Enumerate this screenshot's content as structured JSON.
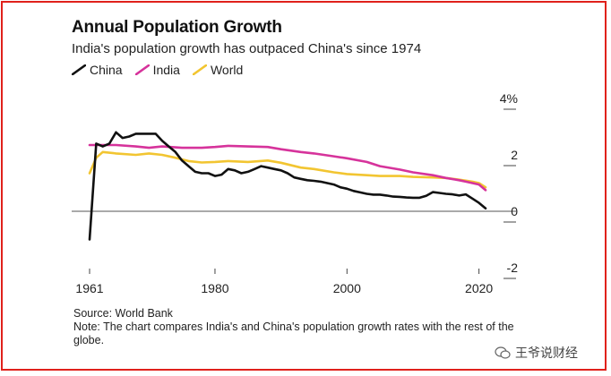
{
  "title": "Annual Population Growth",
  "subtitle": "India's population growth has outpaced China's since 1974",
  "legend": [
    {
      "label": "China",
      "color": "#111111"
    },
    {
      "label": "India",
      "color": "#d6339b"
    },
    {
      "label": "World",
      "color": "#f2c531"
    }
  ],
  "source": "Source: World Bank",
  "note": "Note: The chart compares India's and China's population growth rates with the rest of the globe.",
  "watermark": "王爷说财经",
  "chart_data": {
    "type": "line",
    "title": "Annual Population Growth",
    "xlabel": "",
    "ylabel": "",
    "xlim": [
      1961,
      2021
    ],
    "ylim": [
      -2,
      4
    ],
    "x_ticks": [
      {
        "value": 1961,
        "label": "1961"
      },
      {
        "value": 1980,
        "label": "1980"
      },
      {
        "value": 2000,
        "label": "2000"
      },
      {
        "value": 2020,
        "label": "2020"
      }
    ],
    "y_ticks": [
      {
        "value": 4,
        "label": "4%"
      },
      {
        "value": 2,
        "label": "2"
      },
      {
        "value": 0,
        "label": "0"
      },
      {
        "value": -2,
        "label": "-2"
      }
    ],
    "series": [
      {
        "name": "China",
        "color": "#111111",
        "points": [
          [
            1961,
            -1.0
          ],
          [
            1962,
            2.4
          ],
          [
            1963,
            2.3
          ],
          [
            1964,
            2.4
          ],
          [
            1965,
            2.8
          ],
          [
            1966,
            2.6
          ],
          [
            1967,
            2.65
          ],
          [
            1968,
            2.75
          ],
          [
            1969,
            2.75
          ],
          [
            1970,
            2.75
          ],
          [
            1971,
            2.75
          ],
          [
            1972,
            2.5
          ],
          [
            1973,
            2.3
          ],
          [
            1974,
            2.1
          ],
          [
            1975,
            1.8
          ],
          [
            1976,
            1.6
          ],
          [
            1977,
            1.4
          ],
          [
            1978,
            1.35
          ],
          [
            1979,
            1.35
          ],
          [
            1980,
            1.25
          ],
          [
            1981,
            1.3
          ],
          [
            1982,
            1.5
          ],
          [
            1983,
            1.45
          ],
          [
            1984,
            1.35
          ],
          [
            1985,
            1.4
          ],
          [
            1986,
            1.5
          ],
          [
            1987,
            1.6
          ],
          [
            1988,
            1.55
          ],
          [
            1989,
            1.5
          ],
          [
            1990,
            1.45
          ],
          [
            1991,
            1.35
          ],
          [
            1992,
            1.2
          ],
          [
            1993,
            1.15
          ],
          [
            1994,
            1.1
          ],
          [
            1995,
            1.08
          ],
          [
            1996,
            1.05
          ],
          [
            1997,
            1.0
          ],
          [
            1998,
            0.95
          ],
          [
            1999,
            0.85
          ],
          [
            2000,
            0.8
          ],
          [
            2001,
            0.72
          ],
          [
            2002,
            0.67
          ],
          [
            2003,
            0.62
          ],
          [
            2004,
            0.59
          ],
          [
            2005,
            0.59
          ],
          [
            2006,
            0.56
          ],
          [
            2007,
            0.52
          ],
          [
            2008,
            0.51
          ],
          [
            2009,
            0.49
          ],
          [
            2010,
            0.48
          ],
          [
            2011,
            0.48
          ],
          [
            2012,
            0.55
          ],
          [
            2013,
            0.68
          ],
          [
            2014,
            0.65
          ],
          [
            2015,
            0.62
          ],
          [
            2016,
            0.6
          ],
          [
            2017,
            0.56
          ],
          [
            2018,
            0.6
          ],
          [
            2019,
            0.45
          ],
          [
            2020,
            0.3
          ],
          [
            2021,
            0.1
          ]
        ]
      },
      {
        "name": "India",
        "color": "#d6339b",
        "points": [
          [
            1961,
            2.35
          ],
          [
            1965,
            2.35
          ],
          [
            1968,
            2.3
          ],
          [
            1970,
            2.25
          ],
          [
            1972,
            2.3
          ],
          [
            1975,
            2.25
          ],
          [
            1978,
            2.25
          ],
          [
            1980,
            2.28
          ],
          [
            1982,
            2.32
          ],
          [
            1985,
            2.3
          ],
          [
            1988,
            2.28
          ],
          [
            1990,
            2.2
          ],
          [
            1993,
            2.1
          ],
          [
            1995,
            2.05
          ],
          [
            1998,
            1.95
          ],
          [
            2000,
            1.88
          ],
          [
            2003,
            1.75
          ],
          [
            2005,
            1.6
          ],
          [
            2008,
            1.48
          ],
          [
            2010,
            1.38
          ],
          [
            2013,
            1.28
          ],
          [
            2015,
            1.18
          ],
          [
            2017,
            1.1
          ],
          [
            2018,
            1.05
          ],
          [
            2019,
            1.0
          ],
          [
            2020,
            0.95
          ],
          [
            2021,
            0.75
          ]
        ]
      },
      {
        "name": "World",
        "color": "#f2c531",
        "points": [
          [
            1961,
            1.35
          ],
          [
            1962,
            1.9
          ],
          [
            1963,
            2.1
          ],
          [
            1965,
            2.05
          ],
          [
            1968,
            2.0
          ],
          [
            1970,
            2.05
          ],
          [
            1972,
            2.0
          ],
          [
            1974,
            1.9
          ],
          [
            1976,
            1.78
          ],
          [
            1978,
            1.73
          ],
          [
            1980,
            1.75
          ],
          [
            1982,
            1.78
          ],
          [
            1985,
            1.75
          ],
          [
            1988,
            1.8
          ],
          [
            1990,
            1.72
          ],
          [
            1993,
            1.55
          ],
          [
            1995,
            1.5
          ],
          [
            1998,
            1.38
          ],
          [
            2000,
            1.32
          ],
          [
            2003,
            1.28
          ],
          [
            2005,
            1.25
          ],
          [
            2008,
            1.25
          ],
          [
            2010,
            1.22
          ],
          [
            2013,
            1.2
          ],
          [
            2015,
            1.18
          ],
          [
            2017,
            1.12
          ],
          [
            2019,
            1.05
          ],
          [
            2020,
            1.0
          ],
          [
            2021,
            0.85
          ]
        ]
      }
    ]
  }
}
